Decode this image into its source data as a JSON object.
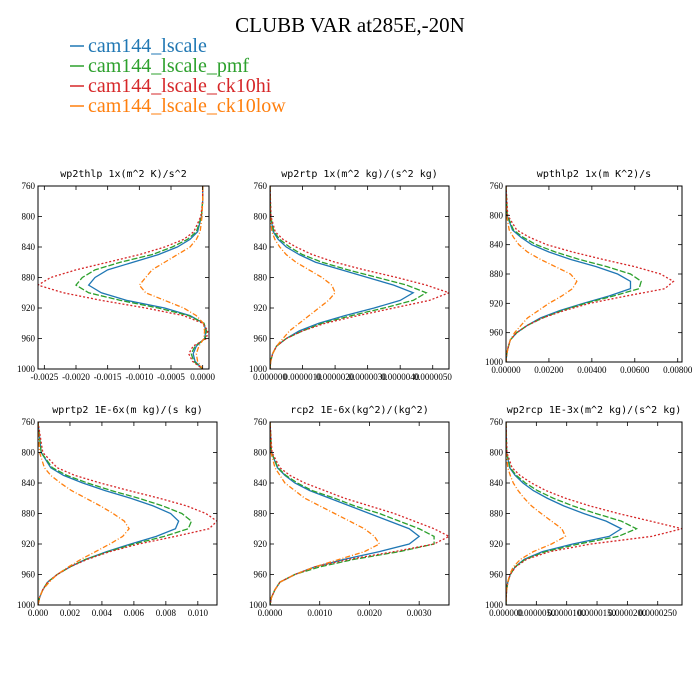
{
  "figure": {
    "title": "CLUBB VAR at285E,-20N"
  },
  "legend": [
    {
      "name": "cam144_lscale",
      "color": "#1f77b4",
      "dash": ""
    },
    {
      "name": "cam144_lscale_pmf",
      "color": "#2ca02c",
      "dash": "6,2"
    },
    {
      "name": "cam144_lscale_ck10hi",
      "color": "#d62728",
      "dash": "2,2"
    },
    {
      "name": "cam144_lscale_ck10low",
      "color": "#ff7f0e",
      "dash": "5,2,1,2"
    }
  ],
  "chart_data": [
    {
      "type": "line",
      "title": "wp2thlp  1x(m^2 K)/s^2",
      "y": [
        760,
        780,
        800,
        820,
        830,
        840,
        850,
        860,
        870,
        880,
        890,
        900,
        910,
        920,
        930,
        940,
        950,
        960,
        970,
        980,
        990,
        1000
      ],
      "ylim": [
        1000,
        760
      ],
      "yticks": [
        "760",
        "800",
        "840",
        "880",
        "920",
        "960",
        "1000"
      ],
      "xlim": [
        -0.0026,
        0.0001
      ],
      "xticks": [
        -0.0025,
        -0.002,
        -0.0015,
        -0.001,
        -0.0005,
        0.0
      ],
      "xticklabels": [
        "-0.0025",
        "-0.0020",
        "-0.0015",
        "-0.0010",
        "-0.0005",
        "0.0000"
      ],
      "series": [
        {
          "values": [
            0,
            0,
            -2e-05,
            -8e-05,
            -0.0002,
            -0.0004,
            -0.0007,
            -0.0011,
            -0.0015,
            -0.0017,
            -0.0018,
            -0.0016,
            -0.0012,
            -0.0006,
            -0.0002,
            2e-05,
            5e-05,
            3e-05,
            -0.0001,
            -0.00015,
            -0.00012,
            0
          ]
        },
        {
          "values": [
            0,
            0,
            -2e-05,
            -0.0001,
            -0.00024,
            -0.00048,
            -0.0008,
            -0.0013,
            -0.0017,
            -0.0019,
            -0.002,
            -0.0018,
            -0.0013,
            -0.0007,
            -0.00022,
            2e-05,
            6e-05,
            4e-05,
            -0.00012,
            -0.00018,
            -0.00014,
            0
          ]
        },
        {
          "values": [
            0,
            0,
            -3e-05,
            -0.00014,
            -0.0003,
            -0.0006,
            -0.001,
            -0.0015,
            -0.002,
            -0.0024,
            -0.0026,
            -0.0022,
            -0.0016,
            -0.0009,
            -0.0003,
            0,
            8e-05,
            6e-05,
            -0.00015,
            -0.00022,
            -0.00016,
            0
          ]
        },
        {
          "values": [
            0,
            0,
            -1e-05,
            -4e-05,
            -0.0001,
            -0.0002,
            -0.0004,
            -0.0006,
            -0.0008,
            -0.0009,
            -0.001,
            -0.0009,
            -0.0006,
            -0.0003,
            -0.0001,
            1e-05,
            3e-05,
            2e-05,
            -6e-05,
            -0.0001,
            -8e-05,
            0
          ]
        }
      ]
    },
    {
      "type": "line",
      "title": "wp2rtp  1x(m^2 kg)/(s^2 kg)",
      "y": [
        760,
        800,
        820,
        830,
        840,
        850,
        860,
        870,
        880,
        890,
        900,
        910,
        920,
        930,
        940,
        950,
        960,
        970,
        980,
        990,
        1000
      ],
      "ylim": [
        1000,
        760
      ],
      "yticks": [
        "760",
        "800",
        "840",
        "880",
        "920",
        "960",
        "1000"
      ],
      "xlim": [
        0,
        5.5e-06
      ],
      "xticks": [
        0,
        1e-06,
        2e-06,
        3e-06,
        4e-06,
        5e-06
      ],
      "xticklabels": [
        "0.000000",
        "0.0000010",
        "0.0000020",
        "0.0000030",
        "0.0000040",
        "0.0000050"
      ],
      "series": [
        {
          "values": [
            0,
            2e-08,
            1e-07,
            2.5e-07,
            5e-07,
            9e-07,
            1.4e-06,
            2.2e-06,
            3e-06,
            3.8e-06,
            4.4e-06,
            4e-06,
            3.2e-06,
            2.3e-06,
            1.5e-06,
            9e-07,
            5e-07,
            2e-07,
            8e-08,
            2e-08,
            0
          ]
        },
        {
          "values": [
            0,
            2e-08,
            1.2e-07,
            3e-07,
            6e-07,
            1e-06,
            1.6e-06,
            2.4e-06,
            3.3e-06,
            4.2e-06,
            4.8e-06,
            4.4e-06,
            3.5e-06,
            2.5e-06,
            1.6e-06,
            1e-06,
            5e-07,
            2e-07,
            8e-08,
            2e-08,
            0
          ]
        },
        {
          "values": [
            0,
            3e-08,
            1.6e-07,
            4e-07,
            8e-07,
            1.3e-06,
            2e-06,
            2.9e-06,
            3.9e-06,
            4.8e-06,
            5.5e-06,
            4.9e-06,
            3.8e-06,
            2.7e-06,
            1.7e-06,
            1e-06,
            5e-07,
            2e-07,
            8e-08,
            2e-08,
            0
          ]
        },
        {
          "values": [
            0,
            1e-08,
            6e-08,
            1.5e-07,
            3e-07,
            5e-07,
            8e-07,
            1.2e-06,
            1.6e-06,
            1.9e-06,
            2e-06,
            1.8e-06,
            1.5e-06,
            1.2e-06,
            9e-07,
            6e-07,
            4e-07,
            2e-07,
            8e-08,
            2e-08,
            0
          ]
        }
      ]
    },
    {
      "type": "line",
      "title": "wpthlp2  1x(m K^2)/s",
      "y": [
        760,
        800,
        820,
        830,
        840,
        850,
        860,
        870,
        880,
        890,
        900,
        910,
        920,
        930,
        940,
        950,
        960,
        970,
        980,
        990,
        1000
      ],
      "ylim": [
        1000,
        760
      ],
      "yticks": [
        "760",
        "800",
        "840",
        "880",
        "920",
        "960",
        "1000"
      ],
      "xlim": [
        0,
        0.0082
      ],
      "xticks": [
        0,
        0.002,
        0.004,
        0.006,
        0.008
      ],
      "xticklabels": [
        "0.00000",
        "0.00200",
        "0.00400",
        "0.00600",
        "0.00800"
      ],
      "series": [
        {
          "values": [
            0,
            5e-05,
            0.0003,
            0.0007,
            0.0012,
            0.002,
            0.003,
            0.0042,
            0.0052,
            0.0058,
            0.0058,
            0.0048,
            0.0036,
            0.0025,
            0.0016,
            0.001,
            0.0005,
            0.0002,
            0.0001,
            3e-05,
            0
          ]
        },
        {
          "values": [
            0,
            6e-05,
            0.00035,
            0.0008,
            0.0014,
            0.0023,
            0.0034,
            0.0047,
            0.0058,
            0.0063,
            0.0062,
            0.005,
            0.0037,
            0.0026,
            0.0017,
            0.001,
            0.0005,
            0.0002,
            0.0001,
            3e-05,
            0
          ]
        },
        {
          "values": [
            0,
            8e-05,
            0.0005,
            0.0011,
            0.0019,
            0.0031,
            0.0045,
            0.006,
            0.0072,
            0.0078,
            0.0074,
            0.0056,
            0.0039,
            0.0027,
            0.0017,
            0.001,
            0.0005,
            0.0002,
            0.0001,
            3e-05,
            0
          ]
        },
        {
          "values": [
            0,
            3e-05,
            0.00015,
            0.00035,
            0.0006,
            0.001,
            0.0016,
            0.0023,
            0.003,
            0.0033,
            0.0031,
            0.0026,
            0.002,
            0.0015,
            0.001,
            0.0007,
            0.0004,
            0.0002,
            0.0001,
            3e-05,
            0
          ]
        }
      ]
    },
    {
      "type": "line",
      "title": "wprtp2  1E-6x(m kg)/(s kg)",
      "y": [
        760,
        800,
        820,
        830,
        840,
        850,
        860,
        870,
        880,
        890,
        900,
        910,
        920,
        930,
        940,
        950,
        960,
        970,
        980,
        990,
        1000
      ],
      "ylim": [
        1000,
        760
      ],
      "yticks": [
        "760",
        "800",
        "840",
        "880",
        "920",
        "960",
        "1000"
      ],
      "xlim": [
        0,
        0.0112
      ],
      "xticks": [
        0,
        0.002,
        0.004,
        0.006,
        0.008,
        0.01
      ],
      "xticklabels": [
        "0.000",
        "0.002",
        "0.004",
        "0.006",
        "0.008",
        "0.010"
      ],
      "series": [
        {
          "values": [
            0,
            0.0002,
            0.0008,
            0.0016,
            0.0028,
            0.0042,
            0.0058,
            0.0072,
            0.0083,
            0.0088,
            0.0086,
            0.0074,
            0.0058,
            0.0043,
            0.003,
            0.002,
            0.0012,
            0.0006,
            0.0003,
            0.0001,
            0
          ]
        },
        {
          "values": [
            0,
            0.0002,
            0.0009,
            0.0018,
            0.0031,
            0.0046,
            0.0063,
            0.0078,
            0.009,
            0.0096,
            0.0094,
            0.0079,
            0.006,
            0.0044,
            0.003,
            0.002,
            0.0012,
            0.0006,
            0.0003,
            0.0001,
            0
          ]
        },
        {
          "values": [
            0,
            0.0003,
            0.0012,
            0.0023,
            0.0039,
            0.0057,
            0.0076,
            0.0093,
            0.0105,
            0.0112,
            0.0107,
            0.0086,
            0.0063,
            0.0045,
            0.0031,
            0.002,
            0.0012,
            0.0006,
            0.0003,
            0.0001,
            0
          ]
        },
        {
          "values": [
            0,
            0.0001,
            0.0004,
            0.0008,
            0.0014,
            0.0021,
            0.003,
            0.0039,
            0.0047,
            0.0054,
            0.0057,
            0.0053,
            0.0045,
            0.0036,
            0.0027,
            0.0019,
            0.0012,
            0.0007,
            0.0003,
            0.0001,
            0
          ]
        }
      ]
    },
    {
      "type": "line",
      "title": "rcp2  1E-6x(kg^2)/(kg^2)",
      "y": [
        760,
        800,
        820,
        830,
        840,
        850,
        860,
        870,
        880,
        890,
        900,
        910,
        920,
        930,
        940,
        950,
        960,
        970,
        980,
        990,
        1000
      ],
      "ylim": [
        1000,
        760
      ],
      "yticks": [
        "760",
        "800",
        "840",
        "880",
        "920",
        "960",
        "1000"
      ],
      "xlim": [
        0,
        0.0036
      ],
      "xticks": [
        0,
        0.001,
        0.002,
        0.003
      ],
      "xticklabels": [
        "0.0000",
        "0.0010",
        "0.0020",
        "0.0030"
      ],
      "series": [
        {
          "values": [
            0,
            3e-05,
            0.00015,
            0.0003,
            0.0005,
            0.0008,
            0.0012,
            0.0016,
            0.002,
            0.0024,
            0.0028,
            0.003,
            0.0028,
            0.0022,
            0.0015,
            0.0009,
            0.0005,
            0.0002,
            0.0001,
            3e-05,
            0
          ]
        },
        {
          "values": [
            0,
            3e-05,
            0.00016,
            0.00032,
            0.00055,
            0.00085,
            0.0013,
            0.0017,
            0.0022,
            0.0026,
            0.003,
            0.0033,
            0.0033,
            0.0026,
            0.0017,
            0.001,
            0.0005,
            0.0002,
            0.0001,
            3e-05,
            0
          ]
        },
        {
          "values": [
            0,
            4e-05,
            0.0002,
            0.0004,
            0.0007,
            0.0011,
            0.0015,
            0.002,
            0.0025,
            0.0029,
            0.0033,
            0.0036,
            0.0033,
            0.0025,
            0.0016,
            0.0009,
            0.0005,
            0.0002,
            0.0001,
            3e-05,
            0
          ]
        },
        {
          "values": [
            0,
            2e-05,
            0.0001,
            0.0002,
            0.0003,
            0.0005,
            0.0007,
            0.001,
            0.0013,
            0.0016,
            0.0019,
            0.0021,
            0.0022,
            0.0019,
            0.0014,
            0.0009,
            0.0005,
            0.0002,
            0.0001,
            3e-05,
            0
          ]
        }
      ]
    },
    {
      "type": "line",
      "title": "wp2rcp  1E-3x(m^2 kg)/(s^2 kg)",
      "y": [
        760,
        800,
        820,
        830,
        840,
        850,
        860,
        870,
        880,
        890,
        900,
        910,
        920,
        930,
        940,
        950,
        960,
        970,
        980,
        990,
        1000
      ],
      "ylim": [
        1000,
        760
      ],
      "yticks": [
        "760",
        "800",
        "840",
        "880",
        "920",
        "960",
        "1000"
      ],
      "xlim": [
        0,
        2.9e-05
      ],
      "xticks": [
        0,
        5e-06,
        1e-05,
        1.5e-05,
        2e-05,
        2.5e-05
      ],
      "xticklabels": [
        "0.000000",
        "0.0000050",
        "0.0000100",
        "0.0000150",
        "0.0000200",
        "0.0000250"
      ],
      "series": [
        {
          "values": [
            0,
            1e-07,
            6e-07,
            1.5e-06,
            2.8e-06,
            4.5e-06,
            6.8e-06,
            9.5e-06,
            1.28e-05,
            1.65e-05,
            1.9e-05,
            1.7e-05,
            1.1e-05,
            6e-06,
            3e-06,
            1.5e-06,
            7e-07,
            3e-07,
            1e-07,
            3e-08,
            0
          ]
        },
        {
          "values": [
            0,
            1e-07,
            7e-07,
            1.7e-06,
            3.2e-06,
            5.2e-06,
            7.8e-06,
            1.1e-05,
            1.48e-05,
            1.9e-05,
            2.15e-05,
            1.85e-05,
            1.2e-05,
            6.5e-06,
            3.2e-06,
            1.5e-06,
            7e-07,
            3e-07,
            1e-07,
            3e-08,
            0
          ]
        },
        {
          "values": [
            0,
            1.5e-07,
            1e-06,
            2.3e-06,
            4.2e-06,
            6.6e-06,
            9.8e-06,
            1.38e-05,
            1.85e-05,
            2.38e-05,
            2.9e-05,
            2.4e-05,
            1.4e-05,
            7.2e-06,
            3.4e-06,
            1.6e-06,
            7e-07,
            3e-07,
            1e-07,
            3e-08,
            0
          ]
        },
        {
          "values": [
            0,
            5e-08,
            3e-07,
            7e-07,
            1.2e-06,
            2e-06,
            3e-06,
            4.2e-06,
            5.8e-06,
            7.5e-06,
            9.2e-06,
            9.8e-06,
            7.5e-06,
            4.5e-06,
            2.4e-06,
            1.2e-06,
            6e-07,
            3e-07,
            1e-07,
            3e-08,
            0
          ]
        }
      ]
    }
  ]
}
